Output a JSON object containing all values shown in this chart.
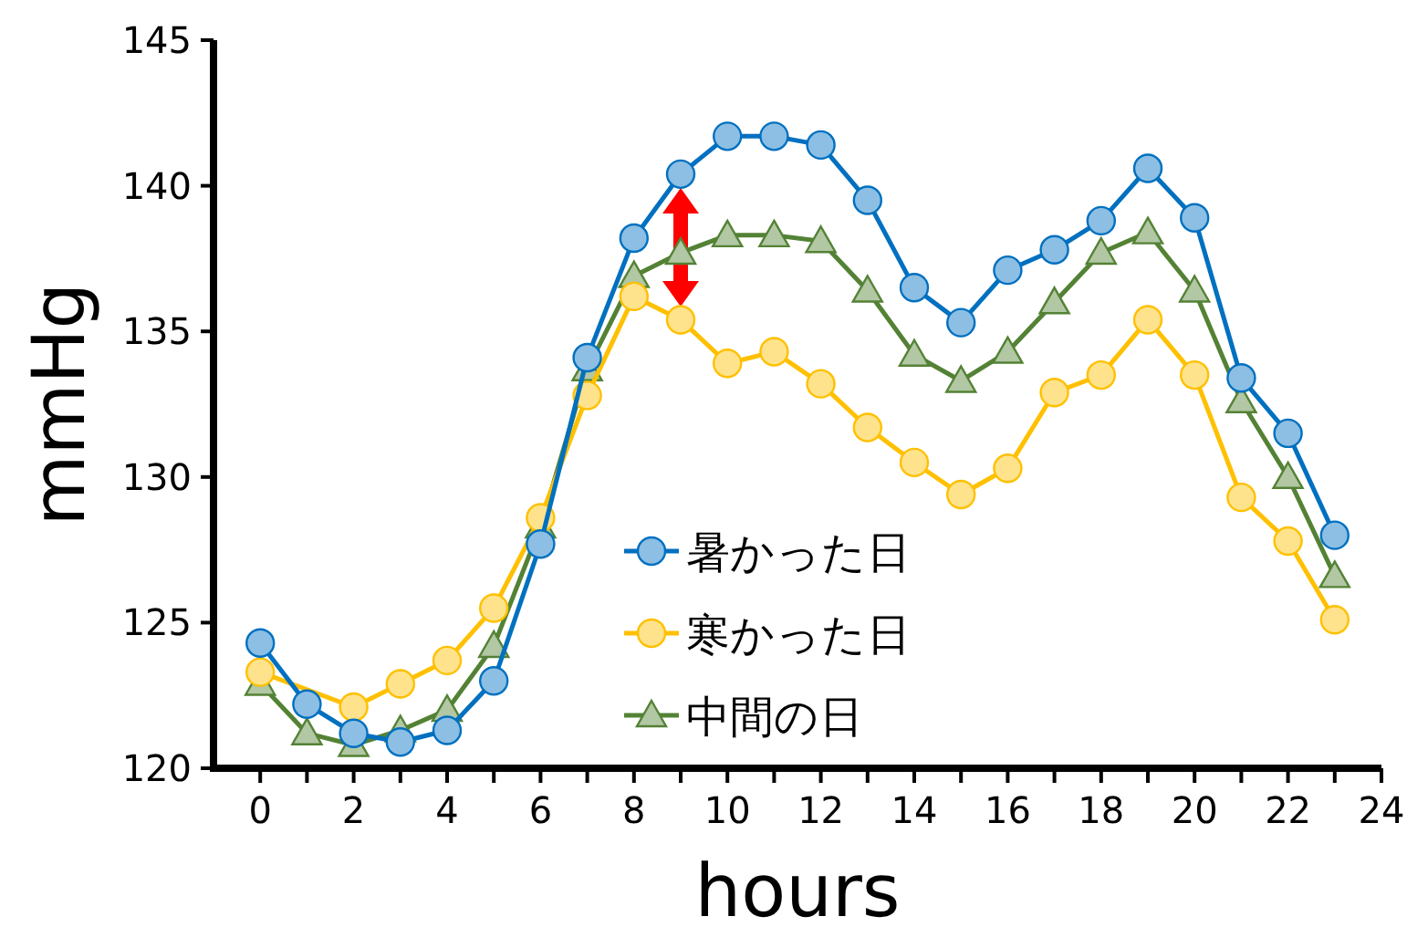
{
  "chart_data": {
    "type": "line",
    "xlabel": "hours",
    "ylabel": "mmHg",
    "x": [
      0,
      1,
      2,
      3,
      4,
      5,
      6,
      7,
      8,
      9,
      10,
      11,
      12,
      13,
      14,
      15,
      16,
      17,
      18,
      19,
      20,
      21,
      22,
      23
    ],
    "series": [
      {
        "name": "暑かった日",
        "color": "#0070c0",
        "marker": "circle",
        "values": [
          124.3,
          122.2,
          121.2,
          120.9,
          121.3,
          123.0,
          127.7,
          134.1,
          138.2,
          140.4,
          141.7,
          141.7,
          141.4,
          139.5,
          136.5,
          135.3,
          137.1,
          137.8,
          138.8,
          140.6,
          138.9,
          133.4,
          131.5,
          128.0
        ]
      },
      {
        "name": "寒かった日",
        "color": "#ffc000",
        "marker": "circle",
        "values": [
          123.3,
          null,
          122.1,
          122.9,
          123.7,
          125.5,
          128.6,
          132.8,
          136.2,
          135.4,
          133.9,
          134.3,
          133.2,
          131.7,
          130.5,
          129.4,
          130.3,
          132.9,
          133.5,
          135.4,
          133.5,
          129.3,
          127.8,
          125.1
        ]
      },
      {
        "name": "中間の日",
        "color": "#548235",
        "marker": "triangle",
        "values": [
          122.9,
          121.2,
          120.8,
          121.3,
          122.0,
          124.2,
          128.3,
          133.7,
          136.9,
          137.7,
          138.3,
          138.3,
          138.1,
          136.4,
          134.2,
          133.3,
          134.3,
          136.0,
          137.7,
          138.4,
          136.4,
          132.6,
          130.0,
          126.6
        ]
      }
    ],
    "xlim": [
      -1,
      24
    ],
    "ylim": [
      120,
      145
    ],
    "xticks": [
      0,
      {
        "value": 1,
        "label": null
      },
      2,
      {
        "value": 3,
        "label": null
      },
      4,
      {
        "value": 5,
        "label": null
      },
      6,
      {
        "value": 7,
        "label": null
      },
      8,
      {
        "value": 9,
        "label": null
      },
      10,
      {
        "value": 11,
        "label": null
      },
      12,
      {
        "value": 13,
        "label": null
      },
      14,
      {
        "value": 15,
        "label": null
      },
      16,
      {
        "value": 17,
        "label": null
      },
      18,
      {
        "value": 19,
        "label": null
      },
      20,
      {
        "value": 21,
        "label": null
      },
      22,
      {
        "value": 23,
        "label": null
      },
      24
    ],
    "yticks": [
      120,
      125,
      130,
      135,
      140,
      145
    ],
    "grid": false,
    "legend": "bottom",
    "line_style": "solid"
  }
}
